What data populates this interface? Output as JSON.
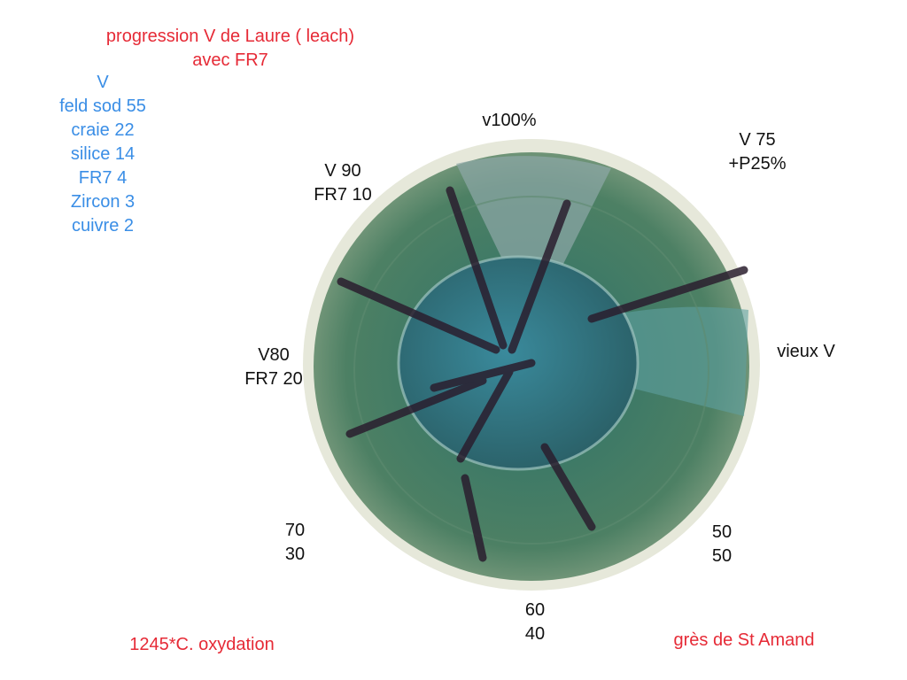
{
  "title": {
    "lines": [
      "progression V de Laure ( leach)",
      "avec FR7"
    ]
  },
  "recipe": {
    "lines": [
      "V",
      "feld sod 55",
      "craie 22",
      "silice 14",
      "FR7 4",
      "Zircon 3",
      "cuivre 2"
    ]
  },
  "labels": [
    {
      "lines": [
        "v100%"
      ]
    },
    {
      "lines": [
        "V 75",
        "+P25%"
      ]
    },
    {
      "lines": [
        "V 90",
        "FR7 10"
      ]
    },
    {
      "lines": [
        "V80",
        "FR7 20"
      ]
    },
    {
      "lines": [
        "vieux V"
      ]
    },
    {
      "lines": [
        "70",
        "30"
      ]
    },
    {
      "lines": [
        "50",
        "50"
      ]
    },
    {
      "lines": [
        "60",
        "40"
      ]
    }
  ],
  "footer": {
    "firing": "1245*C. oxydation",
    "clay": "grès de St Amand"
  }
}
